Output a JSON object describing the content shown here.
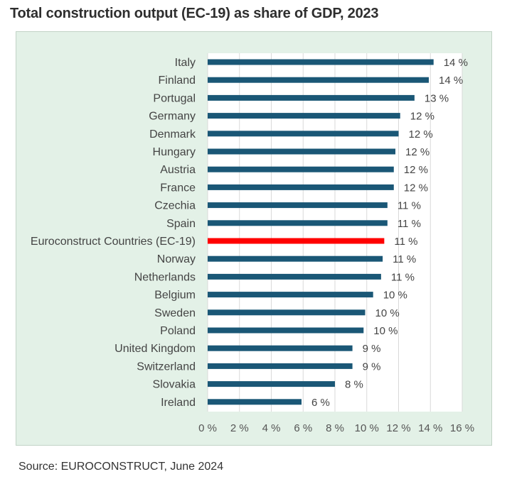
{
  "title": "Total construction output (EC-19) as share of GDP, 2023",
  "source": "Source: EUROCONSTRUCT, June 2024",
  "colors": {
    "bar": "#1a5776",
    "highlight": "#ff0000",
    "panel": "#e3f1e7",
    "plot_bg": "#ffffff",
    "grid": "#d9d9d9"
  },
  "chart_data": {
    "type": "bar",
    "orientation": "horizontal",
    "title": "Total construction output (EC-19) as share of GDP, 2023",
    "xlabel": "",
    "ylabel": "",
    "xlim": [
      0,
      16
    ],
    "x_ticks": [
      0,
      2,
      4,
      6,
      8,
      10,
      12,
      14,
      16
    ],
    "x_tick_labels": [
      "0 %",
      "2 %",
      "4 %",
      "6 %",
      "8 %",
      "10 %",
      "12 %",
      "14 %",
      "16 %"
    ],
    "grid": true,
    "highlight_category": "Euroconstruct Countries (EC-19)",
    "categories": [
      "Italy",
      "Finland",
      "Portugal",
      "Germany",
      "Denmark",
      "Hungary",
      "Austria",
      "France",
      "Czechia",
      "Spain",
      "Euroconstruct Countries (EC-19)",
      "Norway",
      "Netherlands",
      "Belgium",
      "Sweden",
      "Poland",
      "United Kingdom",
      "Switzerland",
      "Slovakia",
      "Ireland"
    ],
    "values": [
      14.2,
      13.9,
      13.0,
      12.1,
      12.0,
      11.8,
      11.7,
      11.7,
      11.3,
      11.3,
      11.1,
      11.0,
      10.9,
      10.4,
      9.9,
      9.8,
      9.1,
      9.1,
      8.0,
      5.9
    ],
    "value_labels": [
      "14 %",
      "14 %",
      "13 %",
      "12 %",
      "12 %",
      "12 %",
      "12 %",
      "12 %",
      "11 %",
      "11 %",
      "11 %",
      "11 %",
      "11 %",
      "10 %",
      "10 %",
      "10 %",
      "9 %",
      "9 %",
      "8 %",
      "6 %"
    ]
  }
}
